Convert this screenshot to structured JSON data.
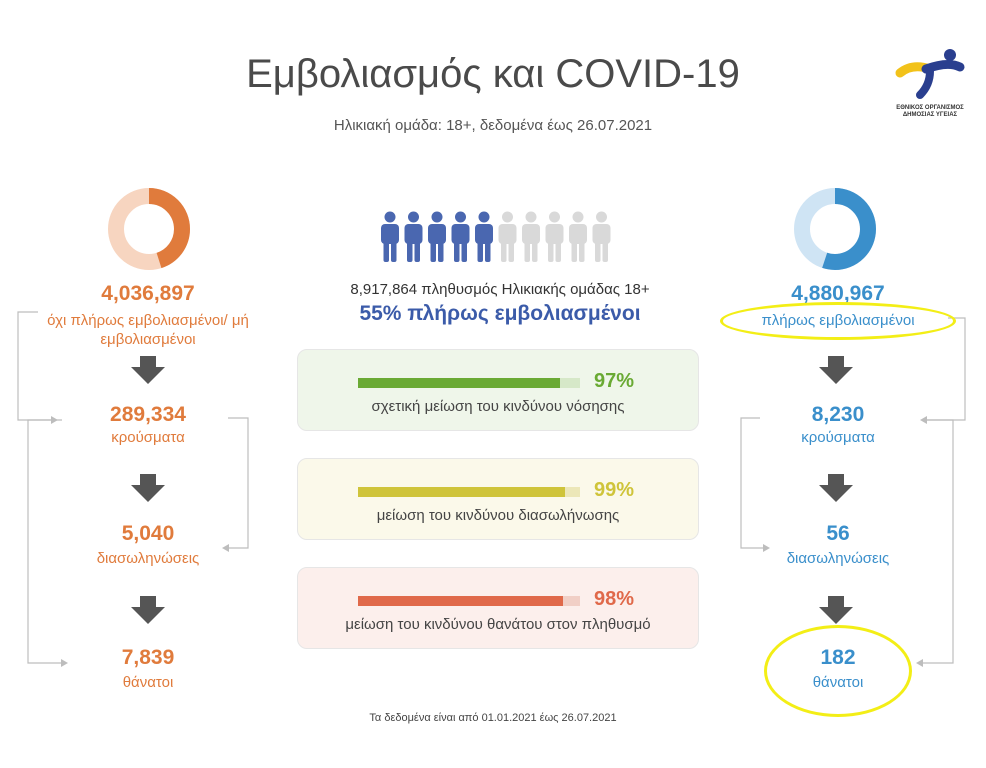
{
  "header": {
    "title": "Εμβολιασμός και COVID-19",
    "subtitle": "Ηλικιακή ομάδα: 18+, δεδομένα έως 26.07.2021"
  },
  "logo": {
    "text_line1": "ΕΘΝΙΚΟΣ ΟΡΓΑΝΙΣΜΟΣ",
    "text_line2": "ΔΗΜΟΣΙΑΣ ΥΓΕΙΑΣ"
  },
  "unvaccinated": {
    "color": "#e07b3c",
    "fraction": 0.45,
    "total": "4,036,897",
    "total_label_line1": "όχι πλήρως εμβολιασμένοι/ μή",
    "total_label_line2": "εμβολιασμένοι",
    "cases": "289,334",
    "cases_label": "κρούσματα",
    "icu": "5,040",
    "icu_label": "διασωληνώσεις",
    "deaths": "7,839",
    "deaths_label": "θάνατοι"
  },
  "vaccinated": {
    "color": "#3a8fcb",
    "fraction": 0.55,
    "total": "4,880,967",
    "total_label": "πλήρως εμβολιασμένοι",
    "cases": "8,230",
    "cases_label": "κρούσματα",
    "icu": "56",
    "icu_label": "διασωληνώσεις",
    "deaths": "182",
    "deaths_label": "θάνατοι"
  },
  "population": {
    "count_text": "8,917,864 πληθυσμός Ηλικιακής ομάδας 18+",
    "percent_text": "55% πλήρως εμβολιασμένοι",
    "filled_people": 5,
    "total_people": 10,
    "filled_color": "#4a67b0",
    "empty_color": "#d9d9d9"
  },
  "cards": [
    {
      "percent": "97%",
      "value": 97,
      "label": "σχετική μείωση του κινδύνου νόσησης",
      "color": "#6aaa34",
      "bg": "#eff6ea"
    },
    {
      "percent": "99%",
      "value": 99,
      "label": "μείωση του κινδύνου διασωλήνωσης",
      "color": "#cfc43a",
      "bg": "#fbf9ea"
    },
    {
      "percent": "98%",
      "value": 98,
      "label": "μείωση του κινδύνου θανάτου στον πληθυσμό",
      "color": "#e0694a",
      "bg": "#fcefec"
    }
  ],
  "footer": "Τα δεδομένα είναι από 01.01.2021 έως 26.07.2021"
}
